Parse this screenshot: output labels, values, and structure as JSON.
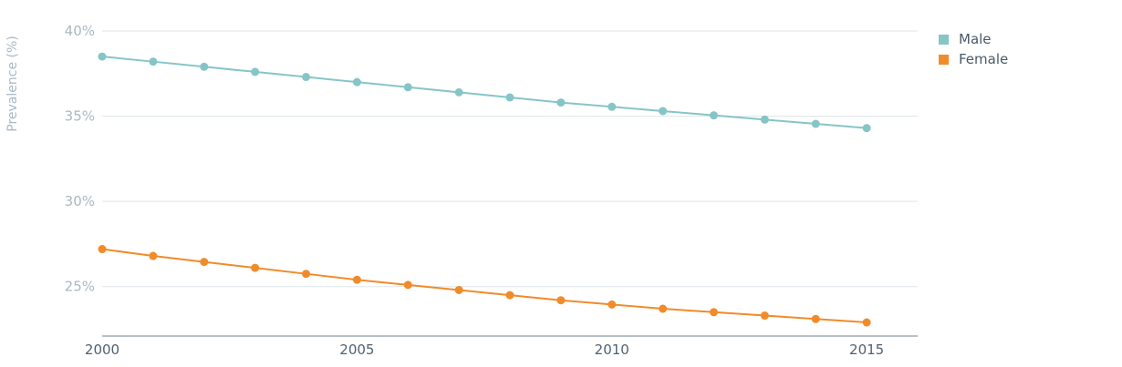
{
  "chart_data": {
    "type": "line",
    "title": "",
    "xlabel": "",
    "ylabel": "Prevalence (%)",
    "x": [
      2000,
      2001,
      2002,
      2003,
      2004,
      2005,
      2006,
      2007,
      2008,
      2009,
      2010,
      2011,
      2012,
      2013,
      2014,
      2015
    ],
    "xlim": [
      2000,
      2016
    ],
    "xticks": [
      2000,
      2005,
      2010,
      2015
    ],
    "ylim": [
      22.1,
      40
    ],
    "yticks": [
      25,
      30,
      35,
      40
    ],
    "ytick_labels": [
      "25%",
      "30%",
      "35%",
      "40%"
    ],
    "grid": true,
    "legend_position": "top-right",
    "series": [
      {
        "name": "Male",
        "color": "#86c5c7",
        "values": [
          38.5,
          38.2,
          37.9,
          37.6,
          37.3,
          37.0,
          36.7,
          36.4,
          36.1,
          35.8,
          35.55,
          35.3,
          35.05,
          34.8,
          34.55,
          34.3
        ]
      },
      {
        "name": "Female",
        "color": "#f18b2a",
        "values": [
          27.2,
          26.8,
          26.45,
          26.1,
          25.75,
          25.4,
          25.1,
          24.8,
          24.5,
          24.2,
          23.95,
          23.7,
          23.5,
          23.3,
          23.1,
          22.9
        ]
      }
    ]
  }
}
